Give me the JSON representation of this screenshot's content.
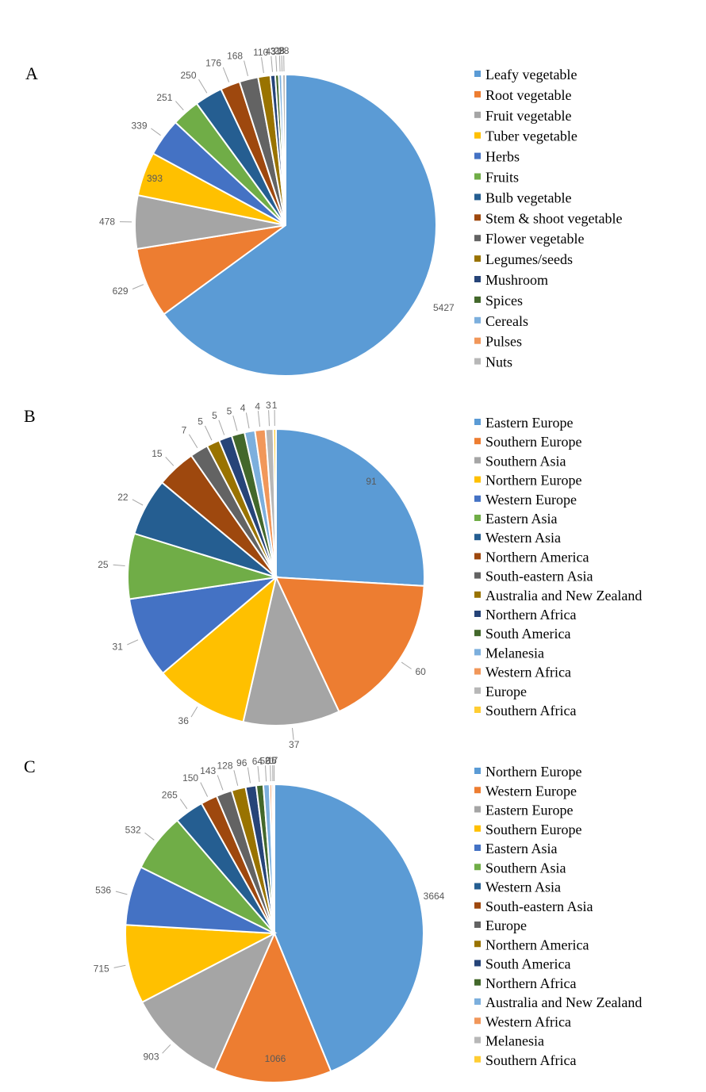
{
  "chart_data": [
    {
      "type": "pie",
      "panel": "A",
      "categories": [
        "Leafy vegetable",
        "Root vegetable",
        "Fruit vegetable",
        "Tuber vegetable",
        "Herbs",
        "Fruits",
        "Bulb vegetable",
        "Stem & shoot vegetable",
        "Flower vegetable",
        "Legumes/seeds",
        "Mushroom",
        "Spices",
        "Cereals",
        "Pulses",
        "Nuts"
      ],
      "values": [
        5427,
        629,
        478,
        393,
        339,
        251,
        250,
        176,
        168,
        110,
        43,
        31,
        28,
        5,
        28
      ],
      "colors": [
        "#5b9bd5",
        "#ed7d31",
        "#a5a5a5",
        "#ffc000",
        "#4472c4",
        "#70ad47",
        "#255e91",
        "#9e480e",
        "#636363",
        "#997300",
        "#264478",
        "#43682b",
        "#7cafdd",
        "#f1975a",
        "#b7b7b7"
      ],
      "legend": "right"
    },
    {
      "type": "pie",
      "panel": "B",
      "categories": [
        "Eastern Europe",
        "Southern Europe",
        "Southern Asia",
        "Northern Europe",
        "Western Europe",
        "Eastern Asia",
        "Western Asia",
        "Northern America",
        "South-eastern Asia",
        "Australia and New Zealand",
        "Northern Africa",
        "South America",
        "Melanesia",
        "Western Africa",
        "Europe",
        "Southern Africa"
      ],
      "values": [
        91,
        60,
        37,
        36,
        31,
        25,
        22,
        15,
        7,
        5,
        5,
        5,
        4,
        4,
        3,
        1
      ],
      "colors": [
        "#5b9bd5",
        "#ed7d31",
        "#a5a5a5",
        "#ffc000",
        "#4472c4",
        "#70ad47",
        "#255e91",
        "#9e480e",
        "#636363",
        "#997300",
        "#264478",
        "#43682b",
        "#7cafdd",
        "#f1975a",
        "#b7b7b7",
        "#ffcd33"
      ],
      "legend": "right"
    },
    {
      "type": "pie",
      "panel": "C",
      "categories": [
        "Northern Europe",
        "Western Europe",
        "Eastern Europe",
        "Southern Europe",
        "Eastern Asia",
        "Southern Asia",
        "Western Asia",
        "South-eastern Asia",
        "Europe",
        "Northern America",
        "South America",
        "Northern Africa",
        "Australia and New Zealand",
        "Western Africa",
        "Melanesia",
        "Southern Africa"
      ],
      "values": [
        3664,
        1066,
        903,
        715,
        536,
        532,
        265,
        150,
        143,
        128,
        96,
        64,
        56,
        21,
        17,
        6
      ],
      "colors": [
        "#5b9bd5",
        "#ed7d31",
        "#a5a5a5",
        "#ffc000",
        "#4472c4",
        "#70ad47",
        "#255e91",
        "#9e480e",
        "#636363",
        "#997300",
        "#264478",
        "#43682b",
        "#7cafdd",
        "#f1975a",
        "#b7b7b7",
        "#ffcd33"
      ],
      "legend": "right"
    }
  ]
}
